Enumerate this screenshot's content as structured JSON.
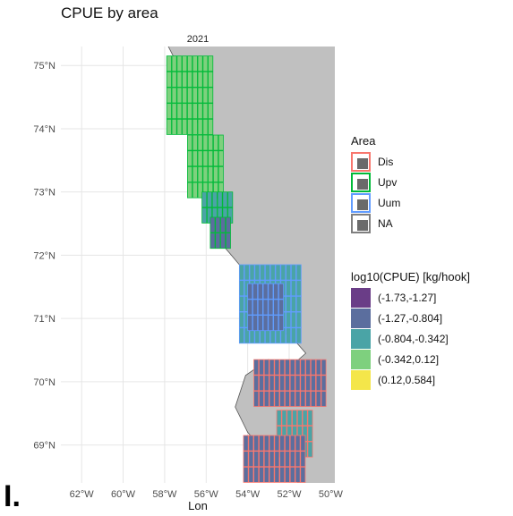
{
  "chart_data": {
    "type": "heatmap",
    "title": "CPUE by area",
    "facet": "2021",
    "xlabel": "Lon",
    "ylabel": "",
    "xlim": [
      -63,
      -49.8
    ],
    "ylim": [
      68.4,
      75.3
    ],
    "x_ticks": [
      {
        "value": -62,
        "label": "62°W"
      },
      {
        "value": -60,
        "label": "60°W"
      },
      {
        "value": -58,
        "label": "58°W"
      },
      {
        "value": -56,
        "label": "56°W"
      },
      {
        "value": -54,
        "label": "54°W"
      },
      {
        "value": -52,
        "label": "52°W"
      },
      {
        "value": -50,
        "label": "50°W"
      }
    ],
    "y_ticks": [
      {
        "value": 69,
        "label": "69°N"
      },
      {
        "value": 70,
        "label": "70°N"
      },
      {
        "value": 71,
        "label": "71°N"
      },
      {
        "value": 72,
        "label": "72°N"
      },
      {
        "value": 73,
        "label": "73°N"
      },
      {
        "value": 74,
        "label": "74°N"
      },
      {
        "value": 75,
        "label": "75°N"
      }
    ],
    "grid": true,
    "legend_position": "right",
    "colors": {
      "panel": "#ffffff",
      "grid": "#e6e6e6",
      "land": "#c0c0c0",
      "coast": "#555555"
    },
    "area_legend": {
      "title": "Area",
      "items": [
        {
          "label": "Dis",
          "color": "#f8766d"
        },
        {
          "label": "Upv",
          "color": "#00ba38"
        },
        {
          "label": "Uum",
          "color": "#619cff"
        },
        {
          "label": "NA",
          "color": "#7f7f7f"
        }
      ]
    },
    "cpue_legend": {
      "title": "log10(CPUE) [kg/hook]",
      "items": [
        {
          "label": "(-1.73,-1.27]",
          "color": "#6a3d87"
        },
        {
          "label": "(-1.27,-0.804]",
          "color": "#5b6e9e"
        },
        {
          "label": "(-0.804,-0.342]",
          "color": "#4aa4a6"
        },
        {
          "label": "(-0.342,0.12]",
          "color": "#7ed07e"
        },
        {
          "label": "(0.12,0.584]",
          "color": "#f4e64a"
        }
      ]
    },
    "cell_size": 0.25,
    "cell_groups": [
      {
        "area": "Upv",
        "bin": "(-0.342,0.12]",
        "lon": [
          -57.9,
          -55.8
        ],
        "lat": [
          73.9,
          75.0
        ]
      },
      {
        "area": "Upv",
        "bin": "(-0.342,0.12]",
        "lon": [
          -56.9,
          -55.2
        ],
        "lat": [
          72.9,
          73.9
        ]
      },
      {
        "area": "Upv",
        "bin": "(-0.804,-0.342]",
        "lon": [
          -56.2,
          -54.9
        ],
        "lat": [
          72.5,
          73.0
        ]
      },
      {
        "area": "Upv",
        "bin": "(-1.27,-0.804]",
        "lon": [
          -55.8,
          -55.0
        ],
        "lat": [
          72.1,
          72.5
        ]
      },
      {
        "area": "Uum",
        "bin": "(-0.804,-0.342]",
        "lon": [
          -54.4,
          -51.6
        ],
        "lat": [
          70.6,
          71.8
        ]
      },
      {
        "area": "Uum",
        "bin": "(-1.27,-0.804]",
        "lon": [
          -54.0,
          -52.4
        ],
        "lat": [
          70.8,
          71.5
        ]
      },
      {
        "area": "Dis",
        "bin": "(-1.27,-0.804]",
        "lon": [
          -53.7,
          -50.3
        ],
        "lat": [
          69.6,
          70.2
        ]
      },
      {
        "area": "Dis",
        "bin": "(-0.804,-0.342]",
        "lon": [
          -52.6,
          -50.9
        ],
        "lat": [
          68.8,
          69.5
        ]
      },
      {
        "area": "Dis",
        "bin": "(-1.27,-0.804]",
        "lon": [
          -54.2,
          -51.2
        ],
        "lat": [
          68.4,
          69.1
        ]
      }
    ]
  },
  "page": {
    "corner_mark": "I."
  }
}
